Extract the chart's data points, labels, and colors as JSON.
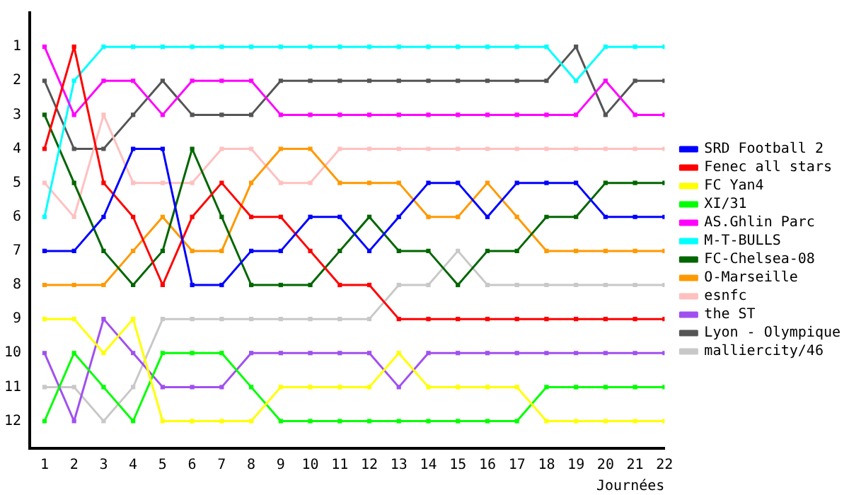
{
  "chart_data": {
    "type": "line",
    "xlabel": "Journées",
    "x": [
      1,
      2,
      3,
      4,
      5,
      6,
      7,
      8,
      9,
      10,
      11,
      12,
      13,
      14,
      15,
      16,
      17,
      18,
      19,
      20,
      21,
      22
    ],
    "xlim": [
      0.5,
      22
    ],
    "xticks": [
      1,
      2,
      3,
      4,
      5,
      6,
      7,
      8,
      9,
      10,
      11,
      12,
      13,
      14,
      15,
      16,
      17,
      18,
      19,
      20,
      21,
      22
    ],
    "ylim": [
      12.8,
      0
    ],
    "yticks": [
      1,
      2,
      3,
      4,
      5,
      6,
      7,
      8,
      9,
      10,
      11,
      12
    ],
    "grid": false,
    "legend": "right",
    "marker": "square",
    "line_style": "solid",
    "series": [
      {
        "name": "SRD Football 2",
        "color": "#0000ff",
        "values": [
          7,
          7,
          6,
          4,
          4,
          8,
          8,
          7,
          7,
          6,
          6,
          7,
          6,
          5,
          5,
          6,
          5,
          5,
          5,
          6,
          6,
          6
        ]
      },
      {
        "name": "Fenec all stars",
        "color": "#ff0000",
        "values": [
          4,
          1,
          5,
          6,
          8,
          6,
          5,
          6,
          6,
          7,
          8,
          8,
          9,
          9,
          9,
          9,
          9,
          9,
          9,
          9,
          9,
          9
        ]
      },
      {
        "name": "FC Yan4",
        "color": "#ffff00",
        "values": [
          9,
          9,
          10,
          9,
          12,
          12,
          12,
          12,
          11,
          11,
          11,
          11,
          10,
          11,
          11,
          11,
          11,
          12,
          12,
          12,
          12,
          12
        ]
      },
      {
        "name": "XI/31",
        "color": "#00ff00",
        "values": [
          12,
          10,
          11,
          12,
          10,
          10,
          10,
          11,
          12,
          12,
          12,
          12,
          12,
          12,
          12,
          12,
          12,
          11,
          11,
          11,
          11,
          11
        ]
      },
      {
        "name": "AS.Ghlin Parc",
        "color": "#ff00ff",
        "values": [
          1,
          3,
          2,
          2,
          3,
          2,
          2,
          2,
          3,
          3,
          3,
          3,
          3,
          3,
          3,
          3,
          3,
          3,
          3,
          2,
          3,
          3
        ]
      },
      {
        "name": "M-T-BULLS",
        "color": "#00ffff",
        "values": [
          6,
          2,
          1,
          1,
          1,
          1,
          1,
          1,
          1,
          1,
          1,
          1,
          1,
          1,
          1,
          1,
          1,
          1,
          2,
          1,
          1,
          1
        ]
      },
      {
        "name": "FC-Chelsea-08",
        "color": "#006600",
        "values": [
          3,
          5,
          7,
          8,
          7,
          4,
          6,
          8,
          8,
          8,
          7,
          6,
          7,
          7,
          8,
          7,
          7,
          6,
          6,
          5,
          5,
          5
        ]
      },
      {
        "name": "O-Marseille",
        "color": "#ff9900",
        "values": [
          8,
          8,
          8,
          7,
          6,
          7,
          7,
          5,
          4,
          4,
          5,
          5,
          5,
          6,
          6,
          5,
          6,
          7,
          7,
          7,
          7,
          7
        ]
      },
      {
        "name": "esnfc",
        "color": "#ffc0c0",
        "values": [
          5,
          6,
          3,
          5,
          5,
          5,
          4,
          4,
          5,
          5,
          4,
          4,
          4,
          4,
          4,
          4,
          4,
          4,
          4,
          4,
          4,
          4
        ]
      },
      {
        "name": "the ST",
        "color": "#a050f0",
        "values": [
          10,
          12,
          9,
          10,
          11,
          11,
          11,
          10,
          10,
          10,
          10,
          10,
          11,
          10,
          10,
          10,
          10,
          10,
          10,
          10,
          10,
          10
        ]
      },
      {
        "name": "Lyon - Olympique",
        "color": "#555555",
        "values": [
          2,
          4,
          4,
          3,
          2,
          3,
          3,
          3,
          2,
          2,
          2,
          2,
          2,
          2,
          2,
          2,
          2,
          2,
          1,
          3,
          2,
          2
        ]
      },
      {
        "name": "malliercity/46",
        "color": "#c8c8c8",
        "values": [
          11,
          11,
          12,
          11,
          9,
          9,
          9,
          9,
          9,
          9,
          9,
          9,
          8,
          8,
          7,
          8,
          8,
          8,
          8,
          8,
          8,
          8
        ]
      }
    ]
  }
}
